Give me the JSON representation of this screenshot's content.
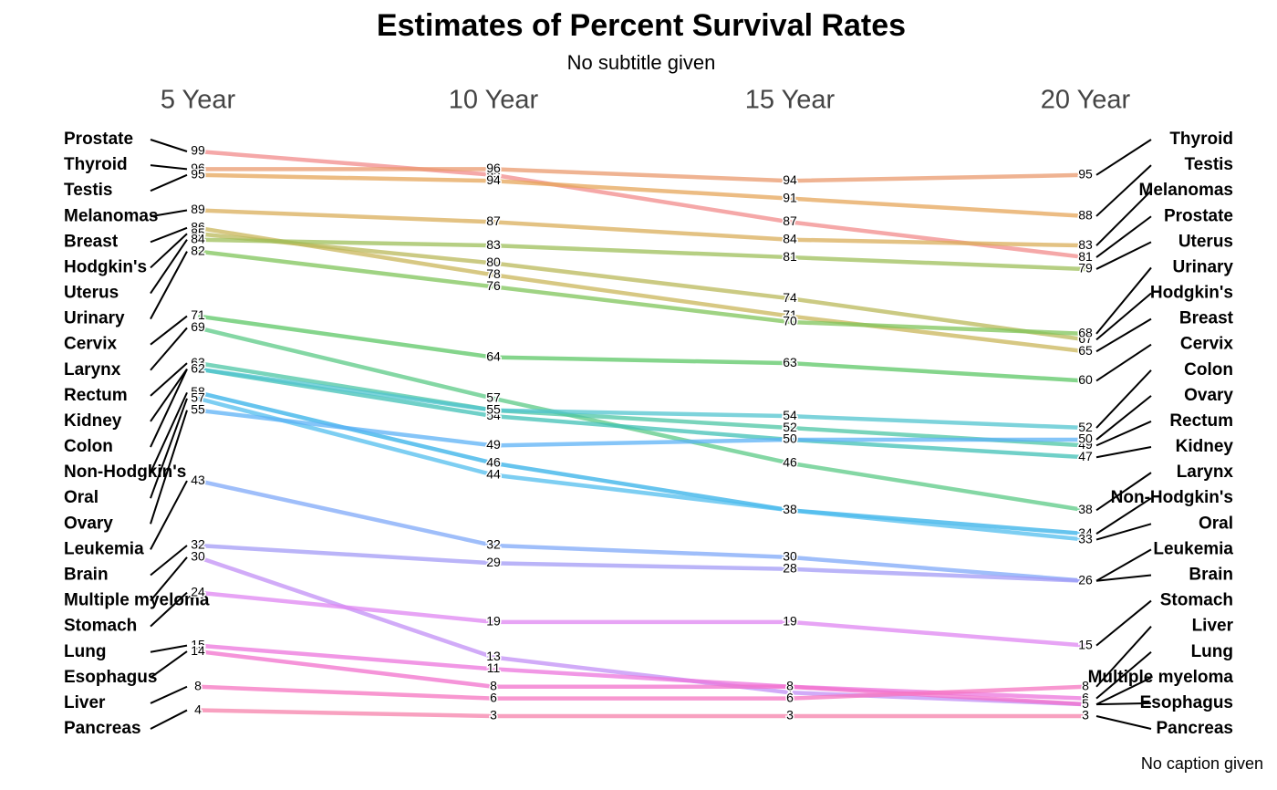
{
  "chart_data": {
    "type": "slope",
    "title": "Estimates of Percent Survival Rates",
    "subtitle": "No subtitle given",
    "caption": "No caption given",
    "categories": [
      "5 Year",
      "10 Year",
      "15 Year",
      "20 Year"
    ],
    "series": [
      {
        "name": "Prostate",
        "color": "#f28b8b",
        "values": [
          99,
          95,
          87,
          81
        ]
      },
      {
        "name": "Thyroid",
        "color": "#ea9a6e",
        "values": [
          96,
          96,
          94,
          95
        ]
      },
      {
        "name": "Testis",
        "color": "#e5a55a",
        "values": [
          95,
          94,
          91,
          88
        ]
      },
      {
        "name": "Melanomas",
        "color": "#d9ae5a",
        "values": [
          89,
          87,
          84,
          83
        ]
      },
      {
        "name": "Breast",
        "color": "#c9b55a",
        "values": [
          86,
          78,
          71,
          65
        ]
      },
      {
        "name": "Hodgkin's",
        "color": "#b9b85a",
        "values": [
          85,
          80,
          74,
          67
        ]
      },
      {
        "name": "Uterus",
        "color": "#9ebf5a",
        "values": [
          84,
          83,
          81,
          79
        ]
      },
      {
        "name": "Urinary",
        "color": "#7fc45a",
        "values": [
          82,
          76,
          70,
          68
        ]
      },
      {
        "name": "Cervix",
        "color": "#5cc765",
        "values": [
          71,
          64,
          63,
          60
        ]
      },
      {
        "name": "Larynx",
        "color": "#5bc985",
        "values": [
          69,
          57,
          46,
          38
        ]
      },
      {
        "name": "Rectum",
        "color": "#4cc6a4",
        "values": [
          63,
          55,
          52,
          49
        ]
      },
      {
        "name": "Kidney",
        "color": "#40c0b5",
        "values": [
          62,
          54,
          50,
          47
        ]
      },
      {
        "name": "Colon",
        "color": "#52c4cf",
        "values": [
          62,
          55,
          54,
          52
        ]
      },
      {
        "name": "Non-Hodgkin's",
        "color": "#33b0e8",
        "values": [
          58,
          46,
          38,
          34
        ]
      },
      {
        "name": "Oral",
        "color": "#52bdee",
        "values": [
          57,
          44,
          38,
          33
        ]
      },
      {
        "name": "Ovary",
        "color": "#5cb2f5",
        "values": [
          55,
          49,
          50,
          50
        ]
      },
      {
        "name": "Leukemia",
        "color": "#7fa8f8",
        "values": [
          43,
          32,
          30,
          26
        ]
      },
      {
        "name": "Brain",
        "color": "#a39bf5",
        "values": [
          32,
          29,
          28,
          26
        ]
      },
      {
        "name": "Multiple myeloma",
        "color": "#c18ff5",
        "values": [
          30,
          13,
          7,
          5
        ]
      },
      {
        "name": "Stomach",
        "color": "#df86f2",
        "values": [
          24,
          19,
          19,
          15
        ]
      },
      {
        "name": "Lung",
        "color": "#ec74dc",
        "values": [
          15,
          11,
          8,
          6
        ]
      },
      {
        "name": "Esophagus",
        "color": "#f270cc",
        "values": [
          14,
          8,
          8,
          5
        ]
      },
      {
        "name": "Liver",
        "color": "#f674c0",
        "values": [
          8,
          6,
          6,
          8
        ]
      },
      {
        "name": "Pancreas",
        "color": "#f682ab",
        "values": [
          4,
          3,
          3,
          3
        ]
      }
    ]
  }
}
